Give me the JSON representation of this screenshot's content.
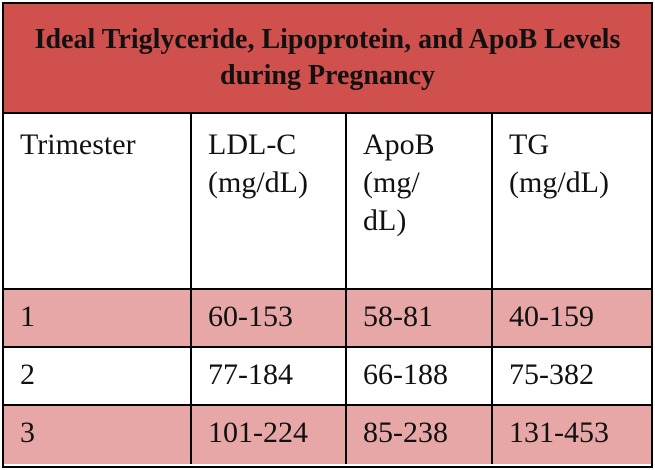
{
  "table": {
    "title": "Ideal Triglyceride, Lipoprotein, and ApoB Levels during Pregnancy",
    "headers": [
      "Trimester",
      "LDL-C\n(mg/dL)",
      "ApoB\n(mg/\ndL)",
      "TG\n(mg/dL)"
    ],
    "rows": [
      [
        "1",
        "60-153",
        "58-81",
        "40-159"
      ],
      [
        "2",
        "77-184",
        "66-188",
        "75-382"
      ],
      [
        "3",
        "101-224",
        "85-238",
        "131-453"
      ]
    ],
    "colors": {
      "title_bg": "#d0504d",
      "shaded_row": "#e6a7a6",
      "plain_row": "#ffffff",
      "border": "#000000"
    }
  }
}
